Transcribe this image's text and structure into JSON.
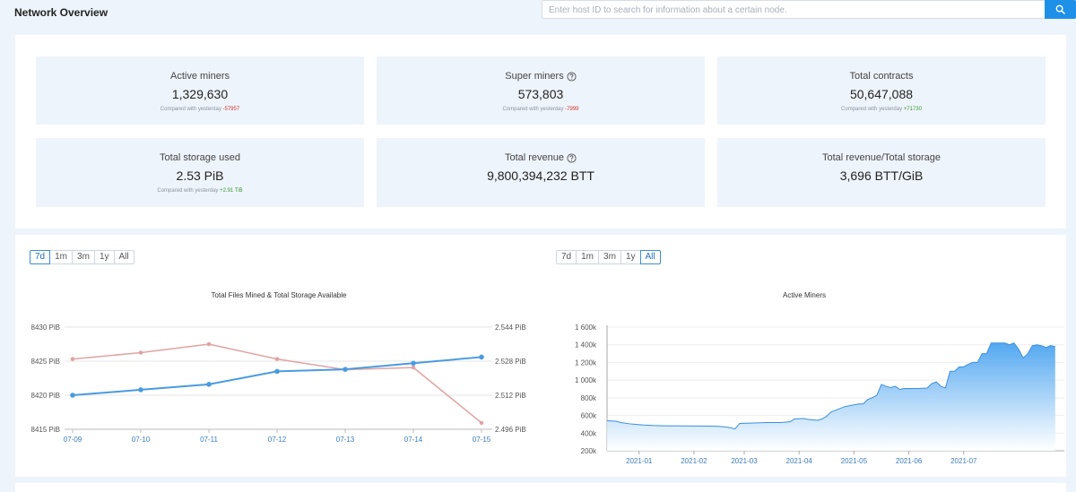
{
  "header": {
    "title": "Network Overview",
    "search_placeholder": "Enter host ID to search for information about a certain node."
  },
  "stats": [
    {
      "label": "Active miners",
      "value": "1,329,630",
      "compare_label": "Compared with yesterday",
      "delta": "-57957",
      "delta_color": "#d0342c",
      "help": false
    },
    {
      "label": "Super miners",
      "value": "573,803",
      "compare_label": "Compared with yesterday",
      "delta": "-7999",
      "delta_color": "#d0342c",
      "help": true
    },
    {
      "label": "Total contracts",
      "value": "50,647,088",
      "compare_label": "Compared with yesterday",
      "delta": "+71730",
      "delta_color": "#3a9a2a",
      "help": false
    },
    {
      "label": "Total storage used",
      "value": "2.53 PiB",
      "compare_label": "Compared with yesterday",
      "delta": "+2.91 TiB",
      "delta_color": "#3a9a2a",
      "help": false
    },
    {
      "label": "Total revenue",
      "value": "9,800,394,232 BTT",
      "help": true
    },
    {
      "label": "Total revenue/Total storage",
      "value": "3,696 BTT/GiB",
      "help": false
    }
  ],
  "range_options": [
    "7d",
    "1m",
    "3m",
    "1y",
    "All"
  ],
  "left_range_selected": "7d",
  "right_range_selected": "All",
  "colors": {
    "accent": "#1e90e8",
    "files_series": "#e0a3a3",
    "storage_series": "#4a9be0",
    "area_top": "#4aa3f0"
  },
  "chart_data": [
    {
      "type": "line",
      "title": "Total Files Mined & Total Storage Available",
      "categories": [
        "07-09",
        "07-10",
        "07-11",
        "07-12",
        "07-13",
        "07-14",
        "07-15"
      ],
      "y_left": {
        "ticks": [
          "8430 PiB",
          "8425 PiB",
          "8420 PiB",
          "8415 PiB"
        ],
        "ylim": [
          8415,
          8430
        ]
      },
      "y_right": {
        "ticks": [
          "2.544 PiB",
          "2.528 PiB",
          "2.512 PiB",
          "2.496 PiB"
        ],
        "ylim": [
          2.496,
          2.544
        ]
      },
      "series": [
        {
          "name": "Total Files Mined",
          "axis": "right",
          "color": "#e0a3a3",
          "values": [
            2.529,
            2.532,
            2.536,
            2.529,
            2.524,
            2.525,
            2.499
          ]
        },
        {
          "name": "Total Storage Available",
          "axis": "left",
          "color": "#4a9be0",
          "values": [
            8420.0,
            8420.8,
            8421.6,
            8423.5,
            8423.8,
            8424.7,
            8425.6
          ]
        }
      ]
    },
    {
      "type": "area",
      "title": "Active Miners",
      "x_ticks": [
        "2021-01",
        "2021-02",
        "2021-03",
        "2021-04",
        "2021-05",
        "2021-06",
        "2021-07"
      ],
      "y_ticks": [
        "1 600k",
        "1 400k",
        "1 200k",
        "1 000k",
        "800k",
        "600k",
        "400k",
        "200k"
      ],
      "ylim": [
        200000,
        1600000
      ],
      "x_range": [
        0,
        100
      ],
      "x_tick_positions": [
        7,
        19,
        30,
        42,
        54,
        66,
        78
      ],
      "points": [
        [
          0,
          540000
        ],
        [
          2,
          535000
        ],
        [
          3,
          520000
        ],
        [
          5,
          505000
        ],
        [
          6,
          500000
        ],
        [
          8,
          492000
        ],
        [
          10,
          487000
        ],
        [
          13,
          483000
        ],
        [
          17,
          481000
        ],
        [
          20,
          480000
        ],
        [
          24,
          478000
        ],
        [
          26,
          470000
        ],
        [
          27,
          460000
        ],
        [
          28,
          448000
        ],
        [
          29,
          510000
        ],
        [
          32,
          515000
        ],
        [
          35,
          520000
        ],
        [
          38,
          520000
        ],
        [
          40,
          528000
        ],
        [
          41,
          560000
        ],
        [
          43,
          565000
        ],
        [
          44,
          555000
        ],
        [
          46,
          545000
        ],
        [
          47,
          560000
        ],
        [
          48,
          590000
        ],
        [
          49,
          640000
        ],
        [
          50,
          660000
        ],
        [
          52,
          700000
        ],
        [
          55,
          730000
        ],
        [
          56,
          730000
        ],
        [
          57,
          780000
        ],
        [
          58,
          800000
        ],
        [
          59,
          830000
        ],
        [
          60,
          950000
        ],
        [
          61,
          930000
        ],
        [
          62,
          915000
        ],
        [
          63,
          930000
        ],
        [
          64,
          895000
        ],
        [
          65,
          905000
        ],
        [
          67,
          905000
        ],
        [
          68,
          905000
        ],
        [
          70,
          910000
        ],
        [
          71,
          960000
        ],
        [
          72,
          980000
        ],
        [
          73,
          930000
        ],
        [
          74,
          910000
        ],
        [
          75,
          1100000
        ],
        [
          76,
          1100000
        ],
        [
          77,
          1150000
        ],
        [
          78,
          1150000
        ],
        [
          79,
          1180000
        ],
        [
          80,
          1200000
        ],
        [
          81,
          1200000
        ],
        [
          82,
          1300000
        ],
        [
          83,
          1300000
        ],
        [
          84,
          1420000
        ],
        [
          85,
          1420000
        ],
        [
          86,
          1420000
        ],
        [
          87,
          1420000
        ],
        [
          88,
          1400000
        ],
        [
          89,
          1420000
        ],
        [
          90,
          1350000
        ],
        [
          91,
          1250000
        ],
        [
          92,
          1300000
        ],
        [
          93,
          1390000
        ],
        [
          94,
          1400000
        ],
        [
          95,
          1390000
        ],
        [
          96,
          1370000
        ],
        [
          97,
          1390000
        ],
        [
          98,
          1380000
        ]
      ]
    }
  ]
}
